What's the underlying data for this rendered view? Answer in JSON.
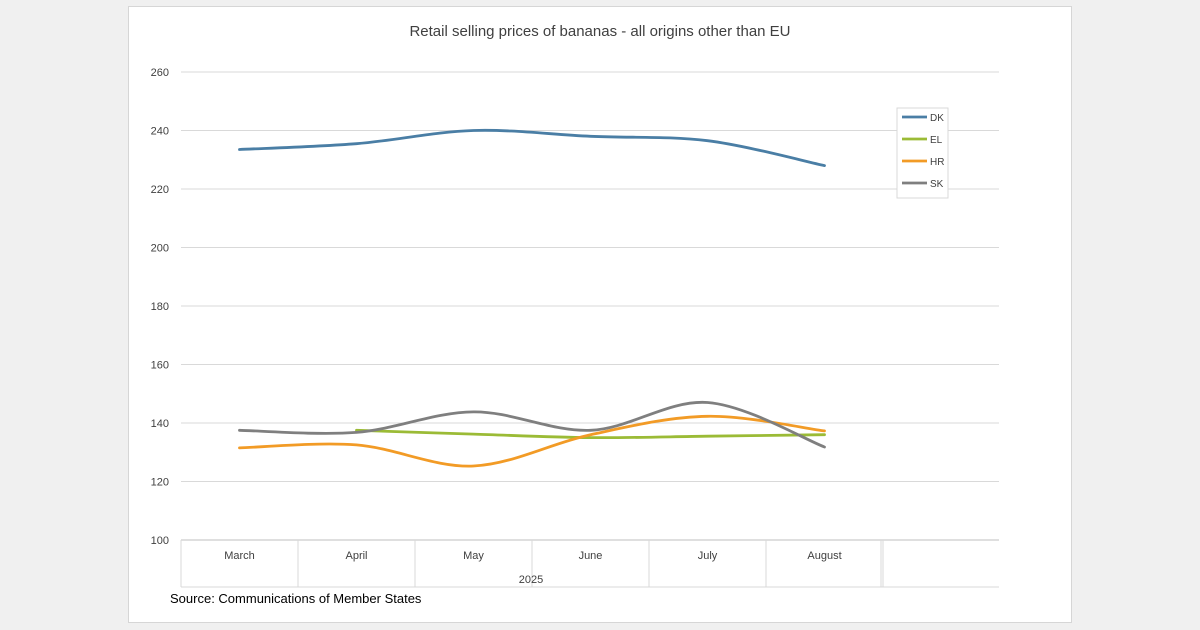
{
  "chart_data": {
    "type": "line",
    "title": "Retail selling prices of bananas - all origins other than EU",
    "categories": [
      "March",
      "April",
      "May",
      "June",
      "July",
      "August"
    ],
    "group_label": "2025",
    "ylim": [
      100,
      260
    ],
    "yticks": [
      100,
      120,
      140,
      160,
      180,
      200,
      220,
      240,
      260
    ],
    "grid": true,
    "legend_position": "top-right",
    "series": [
      {
        "name": "DK",
        "color": "#4a7ea5",
        "values": [
          233.5,
          235.5,
          240,
          238,
          236.5,
          228
        ]
      },
      {
        "name": "EL",
        "color": "#9bbb36",
        "values": [
          null,
          137.5,
          136.2,
          135,
          135.5,
          136
        ]
      },
      {
        "name": "HR",
        "color": "#f29b26",
        "values": [
          131.5,
          132.5,
          125.3,
          136,
          142.3,
          137.3
        ]
      },
      {
        "name": "SK",
        "color": "#7f7f7f",
        "values": [
          137.5,
          136.8,
          143.8,
          137.5,
          147,
          131.8
        ]
      }
    ],
    "source_note": "Source: Communications of Member States"
  }
}
